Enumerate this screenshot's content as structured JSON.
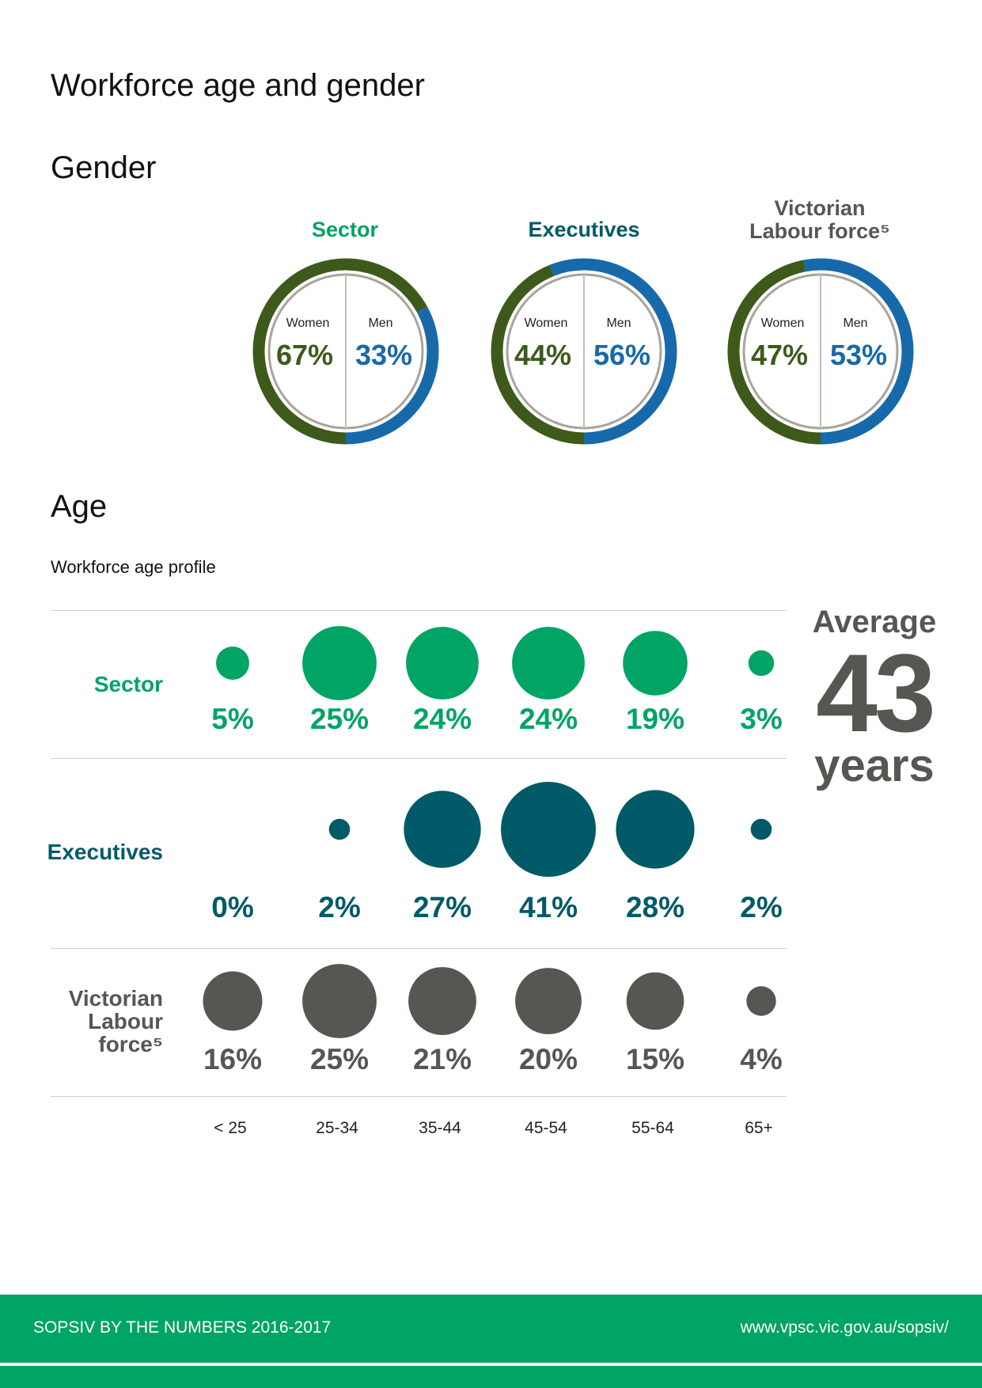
{
  "page_title": "Workforce age and gender",
  "gender_heading": "Gender",
  "age_heading": "Age",
  "age_subtitle": "Workforce age profile",
  "colors": {
    "sector": "#00a464",
    "executives": "#005a67",
    "labour": "#555752",
    "women": "#3e5a1b",
    "men": "#1769aa",
    "track": "#e6e4e0",
    "inner_ring": "#a9a49c"
  },
  "chart_data": [
    {
      "type": "pie",
      "title": "Gender",
      "groups": [
        {
          "name": "Sector",
          "women_label": "Women",
          "men_label": "Men",
          "women": 67,
          "men": 33,
          "women_text": "67%",
          "men_text": "33%"
        },
        {
          "name": "Executives",
          "women_label": "Women",
          "men_label": "Men",
          "women": 44,
          "men": 56,
          "women_text": "44%",
          "men_text": "56%"
        },
        {
          "name": "Victorian Labour force⁵",
          "women_label": "Women",
          "men_label": "Men",
          "women": 47,
          "men": 53,
          "women_text": "47%",
          "men_text": "53%"
        }
      ]
    },
    {
      "type": "scatter",
      "title": "Workforce age profile",
      "categories": [
        "< 25",
        "25-34",
        "35-44",
        "45-54",
        "55-64",
        "65+"
      ],
      "series": [
        {
          "name": "Sector",
          "values": [
            5,
            25,
            24,
            24,
            19,
            3
          ],
          "labels": [
            "5%",
            "25%",
            "24%",
            "24%",
            "19%",
            "3%"
          ]
        },
        {
          "name": "Executives",
          "values": [
            0,
            2,
            27,
            41,
            28,
            2
          ],
          "labels": [
            "0%",
            "2%",
            "27%",
            "41%",
            "28%",
            "2%"
          ]
        },
        {
          "name": "Victorian Labour force⁵",
          "values": [
            16,
            25,
            21,
            20,
            15,
            4
          ],
          "labels": [
            "16%",
            "25%",
            "21%",
            "20%",
            "15%",
            "4%"
          ]
        }
      ],
      "row_labels": [
        "Sector",
        "Executives",
        "Victorian Labour force⁵"
      ]
    }
  ],
  "average": {
    "label": "Average",
    "value": "43",
    "unit": "years"
  },
  "footer": {
    "left": "SOPSIV BY THE NUMBERS 2016-2017",
    "right": "www.vpsc.vic.gov.au/sopsiv/"
  }
}
